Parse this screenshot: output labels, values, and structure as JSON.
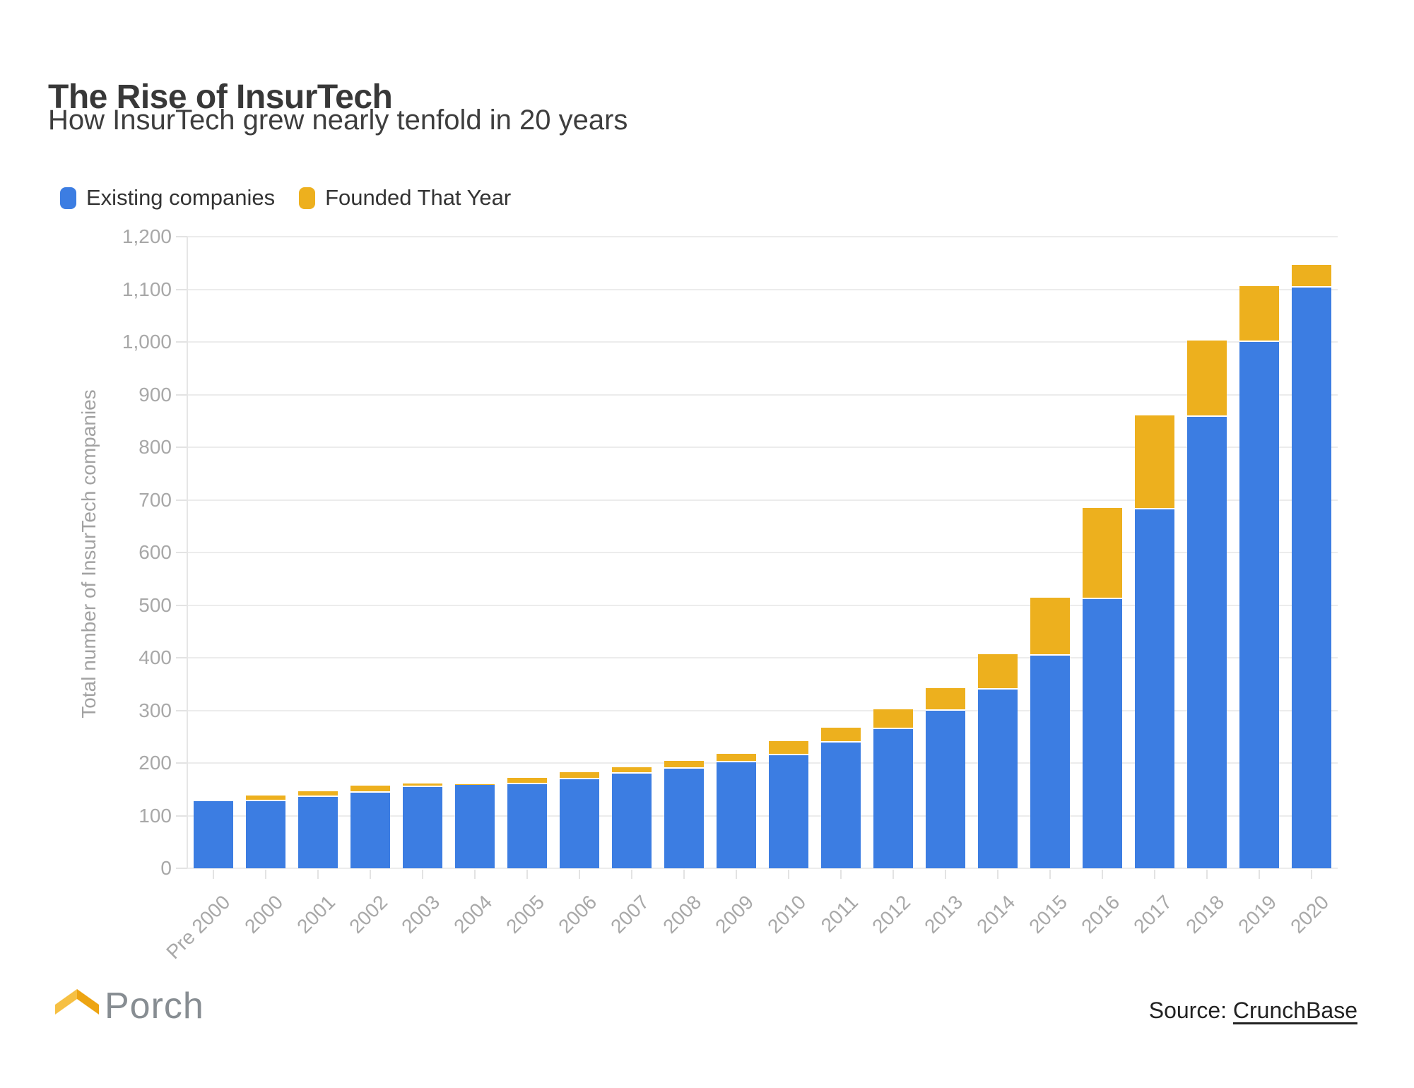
{
  "header": {
    "title": "The Rise of InsurTech",
    "subtitle": "How InsurTech grew nearly tenfold in 20 years"
  },
  "chart_data": {
    "type": "bar",
    "stacked": true,
    "title": "The Rise of InsurTech",
    "subtitle": "How InsurTech grew nearly tenfold in 20 years",
    "categories": [
      "Pre 2000",
      "2000",
      "2001",
      "2002",
      "2003",
      "2004",
      "2005",
      "2006",
      "2007",
      "2008",
      "2009",
      "2010",
      "2011",
      "2012",
      "2013",
      "2014",
      "2015",
      "2016",
      "2017",
      "2018",
      "2019",
      "2020"
    ],
    "series": [
      {
        "name": "Existing companies",
        "color": "#3c7de2",
        "values": [
          127,
          127,
          136,
          143,
          155,
          159,
          160,
          169,
          180,
          189,
          201,
          215,
          239,
          264,
          299,
          339,
          404,
          512,
          682,
          858,
          1000,
          1103
        ]
      },
      {
        "name": "Founded That Year",
        "color": "#edb01e",
        "values": [
          0,
          9,
          7,
          12,
          4,
          1,
          9,
          11,
          9,
          12,
          14,
          24,
          25,
          35,
          40,
          65,
          108,
          170,
          176,
          142,
          103,
          40
        ]
      }
    ],
    "xlabel": "",
    "ylabel": "Total number of InsurTech companies",
    "ylim": [
      0,
      1200
    ],
    "ytick_step": 100,
    "ytick_labels": [
      "0",
      "100",
      "200",
      "300",
      "400",
      "500",
      "600",
      "700",
      "800",
      "900",
      "1,000",
      "1,100",
      "1,200"
    ],
    "grid": true,
    "legend_position": "top-left"
  },
  "footer": {
    "logo_text": "Porch",
    "logo_color_left": "#f6c043",
    "logo_color_right": "#eda412",
    "source_prefix": "Source: ",
    "source_link_text": "CrunchBase"
  }
}
